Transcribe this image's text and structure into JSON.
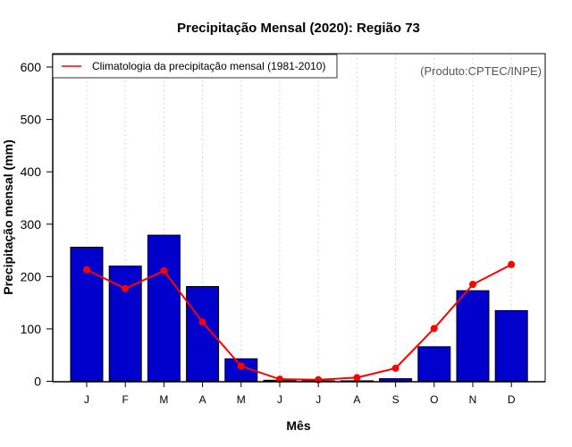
{
  "chart_data": {
    "type": "bar",
    "title": "Precipitação Mensal (2020): Região 73",
    "xlabel": "Mês",
    "ylabel": "Precipitação mensal (mm)",
    "ylim": [
      0,
      600
    ],
    "yticks": [
      0,
      100,
      200,
      300,
      400,
      500,
      600
    ],
    "categories": [
      "J",
      "F",
      "M",
      "A",
      "M",
      "J",
      "J",
      "A",
      "S",
      "O",
      "N",
      "D"
    ],
    "grid": "vertical dashed at each month",
    "credit": "(Produto:CPTEC/INPE)",
    "series": [
      {
        "name": "Precipitação mensal 2020",
        "type": "bar",
        "color": "#0000cd",
        "values": [
          256,
          220,
          279,
          181,
          43,
          2,
          1,
          1,
          5,
          66,
          173,
          135
        ]
      },
      {
        "name": "Climatologia da precipitação mensal (1981-2010)",
        "type": "line",
        "color": "#ff0000",
        "values": [
          213,
          177,
          211,
          113,
          29,
          4,
          3,
          7,
          25,
          101,
          185,
          223
        ]
      }
    ],
    "legend": {
      "position": "top-left",
      "entries": [
        "Climatologia da precipitação mensal (1981-2010)"
      ]
    }
  }
}
